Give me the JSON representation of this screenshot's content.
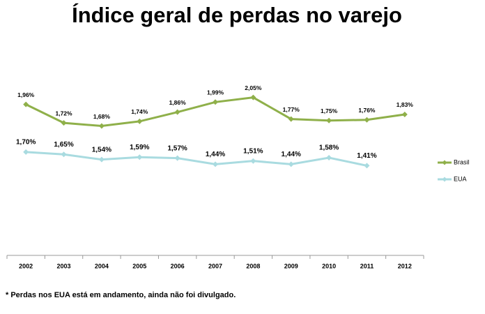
{
  "chart_data": {
    "type": "line",
    "title": "Índice geral de perdas no varejo",
    "categories": [
      "2002",
      "2003",
      "2004",
      "2005",
      "2006",
      "2007",
      "2008",
      "2009",
      "2010",
      "2011",
      "2012"
    ],
    "series": [
      {
        "name": "Brasil",
        "color": "#8fb04a",
        "values": [
          1.96,
          1.72,
          1.68,
          1.74,
          1.86,
          1.99,
          2.05,
          1.77,
          1.75,
          1.76,
          1.83
        ],
        "value_labels": [
          "1,96%",
          "1,72%",
          "1,68%",
          "1,74%",
          "1,86%",
          "1,99%",
          "2,05%",
          "1,77%",
          "1,75%",
          "1,76%",
          "1,83%"
        ]
      },
      {
        "name": "EUA",
        "color": "#a9dbe0",
        "axis": "y2",
        "values": [
          1.7,
          1.65,
          1.54,
          1.59,
          1.57,
          1.44,
          1.51,
          1.44,
          1.58,
          1.41,
          null
        ],
        "value_labels": [
          "1,70%",
          "1,65%",
          "1,54%",
          "1,59%",
          "1,57%",
          "1,44%",
          "1,51%",
          "1,44%",
          "1,58%",
          "1,41%",
          null
        ]
      }
    ],
    "ylim": [
      0,
      2.5
    ],
    "y2lim": [
      -0.5,
      3.6
    ],
    "legend": "right",
    "footnote": "* Perdas nos EUA está em andamento, ainda não foi divulgado."
  }
}
